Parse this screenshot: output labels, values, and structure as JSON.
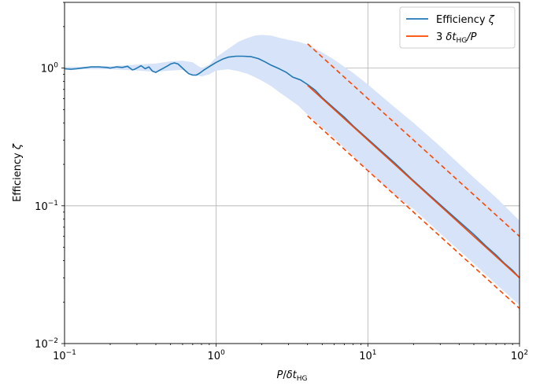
{
  "chart_data": {
    "type": "line",
    "title": "",
    "xlabel": "P/δt_HG",
    "ylabel": "Efficiency ζ",
    "xscale": "log",
    "yscale": "log",
    "xlim": [
      0.1,
      100
    ],
    "ylim": [
      0.01,
      3
    ],
    "grid": true,
    "legend_position": "top-right",
    "x_ticks": [
      {
        "value": 0.1,
        "base": "10",
        "exp": "−1"
      },
      {
        "value": 1,
        "base": "10",
        "exp": "0"
      },
      {
        "value": 10,
        "base": "10",
        "exp": "1"
      },
      {
        "value": 100,
        "base": "10",
        "exp": "2"
      }
    ],
    "y_ticks": [
      {
        "value": 0.01,
        "base": "10",
        "exp": "−2"
      },
      {
        "value": 0.1,
        "base": "10",
        "exp": "−1"
      },
      {
        "value": 1,
        "base": "10",
        "exp": "0"
      }
    ],
    "series": [
      {
        "name": "Efficiency ζ",
        "color": "#1f77b4",
        "style": "solid",
        "x": [
          0.1,
          0.11,
          0.12,
          0.13,
          0.14,
          0.15,
          0.17,
          0.19,
          0.2,
          0.22,
          0.24,
          0.26,
          0.27,
          0.28,
          0.29,
          0.3,
          0.32,
          0.34,
          0.36,
          0.38,
          0.4,
          0.42,
          0.45,
          0.48,
          0.5,
          0.53,
          0.56,
          0.6,
          0.63,
          0.66,
          0.7,
          0.74,
          0.78,
          0.82,
          0.87,
          0.92,
          1.0,
          1.1,
          1.2,
          1.35,
          1.5,
          1.7,
          1.9,
          2.1,
          2.3,
          2.6,
          2.9,
          3.2,
          3.6,
          4.0,
          4.5,
          5,
          6,
          7,
          8,
          10,
          12,
          15,
          20,
          25,
          30,
          40,
          50,
          60,
          70,
          80,
          90,
          100
        ],
        "y": [
          0.99,
          0.98,
          0.99,
          1.0,
          1.01,
          1.02,
          1.02,
          1.01,
          1.0,
          1.02,
          1.01,
          1.03,
          1.0,
          0.97,
          0.98,
          1.0,
          1.04,
          0.99,
          1.02,
          0.95,
          0.93,
          0.96,
          1.0,
          1.04,
          1.07,
          1.09,
          1.07,
          1.0,
          0.95,
          0.91,
          0.89,
          0.89,
          0.92,
          0.96,
          1.0,
          1.04,
          1.1,
          1.16,
          1.2,
          1.22,
          1.22,
          1.21,
          1.17,
          1.11,
          1.05,
          0.99,
          0.93,
          0.86,
          0.82,
          0.76,
          0.69,
          0.61,
          0.51,
          0.44,
          0.38,
          0.305,
          0.255,
          0.205,
          0.152,
          0.122,
          0.102,
          0.077,
          0.062,
          0.051,
          0.044,
          0.038,
          0.034,
          0.03
        ]
      },
      {
        "name": "3 δt_HG/P",
        "color": "#ff4500",
        "style": "solid",
        "x": [
          4,
          100
        ],
        "y": [
          0.75,
          0.03
        ]
      },
      {
        "name": "",
        "color": "#ff4500",
        "style": "dashed",
        "x": [
          4,
          100
        ],
        "y": [
          1.5,
          0.06
        ]
      },
      {
        "name": "",
        "color": "#ff4500",
        "style": "dashed",
        "x": [
          4,
          100
        ],
        "y": [
          0.45,
          0.018
        ]
      }
    ],
    "band": {
      "color": "#d6e3f8",
      "x": [
        0.1,
        0.2,
        0.3,
        0.4,
        0.5,
        0.6,
        0.7,
        0.8,
        0.9,
        1.0,
        1.2,
        1.4,
        1.6,
        1.8,
        2.0,
        2.3,
        2.6,
        3.0,
        3.5,
        4.0,
        5,
        6,
        8,
        10,
        15,
        20,
        30,
        50,
        70,
        100
      ],
      "lower": [
        0.98,
        0.98,
        0.96,
        0.94,
        0.96,
        0.97,
        0.9,
        0.87,
        0.9,
        0.96,
        0.98,
        0.95,
        0.91,
        0.86,
        0.81,
        0.74,
        0.67,
        0.6,
        0.53,
        0.46,
        0.37,
        0.31,
        0.23,
        0.18,
        0.12,
        0.095,
        0.063,
        0.038,
        0.027,
        0.019
      ],
      "upper": [
        1.02,
        1.03,
        1.06,
        1.08,
        1.12,
        1.13,
        1.1,
        1.0,
        1.06,
        1.2,
        1.38,
        1.55,
        1.65,
        1.72,
        1.74,
        1.72,
        1.66,
        1.6,
        1.55,
        1.48,
        1.3,
        1.15,
        0.92,
        0.76,
        0.52,
        0.4,
        0.27,
        0.16,
        0.115,
        0.078
      ]
    },
    "legend": [
      {
        "label_main": "Efficiency ",
        "label_sym": "ζ",
        "label_sub": "",
        "label_tail": "",
        "color": "#1f77b4",
        "style": "solid"
      },
      {
        "label_main": "3 ",
        "label_sym": "δt",
        "label_sub": "HG",
        "label_tail": "/P",
        "color": "#ff4500",
        "style": "solid"
      }
    ]
  }
}
